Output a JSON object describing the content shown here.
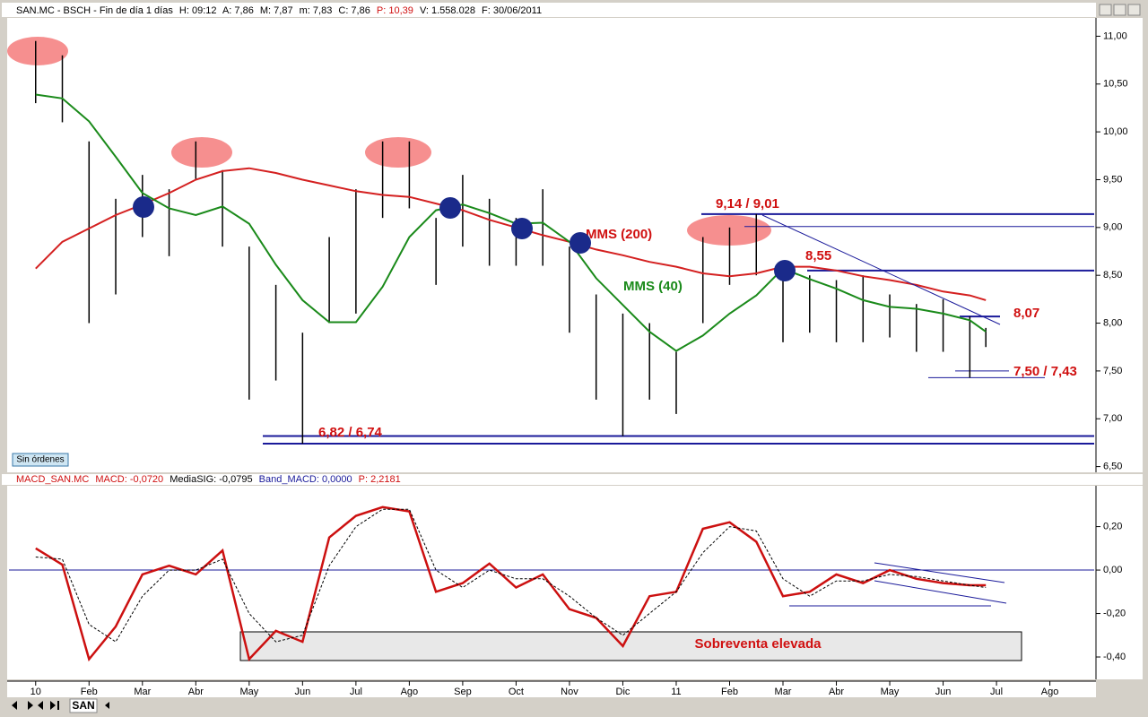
{
  "header": [
    "SAN.MC - BSCH - Fin de día 1 días",
    "H: 09:12",
    "A: 7,86",
    "M: 7,87",
    "m: 7,83",
    "C: 7,86",
    "P: 10,39",
    "V: 1.558.028",
    "F: 30/06/2011"
  ],
  "button": "Sin órdenes",
  "tab": "SAN",
  "chart_data": [
    {
      "type": "ohlc",
      "x": [
        0,
        0.5,
        1,
        1.5,
        2,
        2.5,
        3,
        3.5,
        4,
        4.5,
        5,
        5.5,
        6,
        6.5,
        7,
        7.5,
        8,
        8.5,
        9,
        9.5,
        10,
        10.5,
        11,
        11.5,
        12,
        12.5,
        13,
        13.5,
        14,
        14.5,
        15,
        15.5,
        16,
        16.5,
        17,
        17.5,
        17.8
      ],
      "high": [
        10.95,
        10.8,
        9.9,
        9.3,
        9.55,
        9.4,
        9.9,
        9.6,
        8.8,
        8.4,
        7.9,
        8.9,
        9.4,
        9.9,
        9.9,
        9.1,
        9.55,
        9.3,
        9.1,
        9.4,
        8.8,
        8.3,
        8.1,
        8.0,
        7.7,
        8.9,
        9.0,
        9.14,
        8.55,
        8.5,
        8.45,
        8.5,
        8.3,
        8.2,
        8.25,
        8.07,
        7.95
      ],
      "low": [
        10.3,
        10.1,
        8.0,
        8.3,
        8.9,
        8.7,
        9.5,
        8.8,
        7.2,
        7.4,
        6.74,
        8.0,
        8.1,
        9.1,
        9.2,
        8.4,
        8.8,
        8.6,
        8.6,
        8.6,
        7.9,
        7.2,
        6.82,
        7.2,
        7.05,
        8.0,
        8.4,
        8.5,
        7.8,
        7.9,
        7.8,
        7.8,
        7.85,
        7.7,
        7.7,
        7.43,
        7.75
      ],
      "bar_color": "#000000",
      "series": [
        {
          "name": "MMS (200)",
          "color": "#d42020",
          "values": [
            8.57,
            8.85,
            8.99,
            9.13,
            9.24,
            9.36,
            9.5,
            9.59,
            9.62,
            9.57,
            9.5,
            9.44,
            9.38,
            9.34,
            9.32,
            9.25,
            9.18,
            9.08,
            9.0,
            8.92,
            8.85,
            8.77,
            8.71,
            8.64,
            8.59,
            8.52,
            8.49,
            8.52,
            8.59,
            8.59,
            8.55,
            8.49,
            8.45,
            8.4,
            8.33,
            8.29,
            8.24
          ]
        },
        {
          "name": "MMS (40)",
          "color": "#1a8a1a",
          "values": [
            10.39,
            10.35,
            10.11,
            9.74,
            9.36,
            9.2,
            9.13,
            9.22,
            9.04,
            8.61,
            8.24,
            8.01,
            8.01,
            8.38,
            8.9,
            9.18,
            9.24,
            9.15,
            9.04,
            9.05,
            8.85,
            8.47,
            8.19,
            7.91,
            7.71,
            7.87,
            8.1,
            8.29,
            8.57,
            8.46,
            8.36,
            8.24,
            8.17,
            8.15,
            8.1,
            8.03,
            7.91
          ]
        }
      ],
      "xlim": [
        -0.5,
        19.83
      ],
      "xticks": [
        {
          "value": 0,
          "label": "10"
        },
        {
          "value": 1,
          "label": "Feb"
        },
        {
          "value": 2,
          "label": "Mar"
        },
        {
          "value": 3,
          "label": "Abr"
        },
        {
          "value": 4,
          "label": "May"
        },
        {
          "value": 5,
          "label": "Jun"
        },
        {
          "value": 6,
          "label": "Jul"
        },
        {
          "value": 7,
          "label": "Ago"
        },
        {
          "value": 8,
          "label": "Sep"
        },
        {
          "value": 9,
          "label": "Oct"
        },
        {
          "value": 10,
          "label": "Nov"
        },
        {
          "value": 11,
          "label": "Dic"
        },
        {
          "value": 12,
          "label": "11"
        },
        {
          "value": 13,
          "label": "Feb"
        },
        {
          "value": 14,
          "label": "Mar"
        },
        {
          "value": 15,
          "label": "Abr"
        },
        {
          "value": 16,
          "label": "May"
        },
        {
          "value": 17,
          "label": "Jun"
        },
        {
          "value": 18,
          "label": "Jul"
        },
        {
          "value": 19,
          "label": "Ago"
        }
      ],
      "ylim": [
        6.44,
        11.21
      ],
      "yticks": [
        {
          "value": 6.5,
          "label": "6,50"
        },
        {
          "value": 7,
          "label": "7,00"
        },
        {
          "value": 7.5,
          "label": "7,50"
        },
        {
          "value": 8,
          "label": "8,00"
        },
        {
          "value": 8.5,
          "label": "8,50"
        },
        {
          "value": 9,
          "label": "9,00"
        },
        {
          "value": 9.5,
          "label": "9,50"
        },
        {
          "value": 10,
          "label": "10,00"
        },
        {
          "value": 10.5,
          "label": "10,50"
        },
        {
          "value": 11,
          "label": "11,00"
        }
      ],
      "levels": [
        9.14,
        9.01,
        8.55,
        8.07,
        7.5,
        7.43,
        6.82,
        6.74
      ],
      "level_color": "#1a1a9a",
      "annotations": [
        "9,14 / 9,01",
        "8,55",
        "8,07",
        "7,50 / 7,43",
        "6,82 / 6,74"
      ]
    },
    {
      "type": "line",
      "title": [
        "MACD_SAN.MC",
        "MACD: -0,0720",
        "MediaSIG: -0,0795",
        "Band_MACD: 0,0000",
        "P: 2,2181"
      ],
      "series": [
        {
          "name": "MACD",
          "color": "#cc1010",
          "values": [
            0.1,
            0.025,
            -0.41,
            -0.26,
            -0.02,
            0.02,
            -0.02,
            0.09,
            -0.41,
            -0.28,
            -0.33,
            0.15,
            0.25,
            0.29,
            0.27,
            -0.1,
            -0.06,
            0.03,
            -0.08,
            -0.02,
            -0.18,
            -0.22,
            -0.35,
            -0.12,
            -0.1,
            0.19,
            0.22,
            0.13,
            -0.12,
            -0.1,
            -0.02,
            -0.06,
            0.0,
            -0.04,
            -0.06,
            -0.07,
            -0.07
          ]
        },
        {
          "name": "MediaSIG",
          "color": "#000000",
          "values": [
            0.06,
            0.05,
            -0.25,
            -0.33,
            -0.12,
            0.0,
            0.0,
            0.05,
            -0.2,
            -0.33,
            -0.3,
            0.02,
            0.2,
            0.28,
            0.28,
            0.0,
            -0.08,
            0.0,
            -0.04,
            -0.04,
            -0.12,
            -0.22,
            -0.3,
            -0.2,
            -0.1,
            0.08,
            0.2,
            0.18,
            -0.04,
            -0.12,
            -0.05,
            -0.05,
            -0.02,
            -0.03,
            -0.05,
            -0.07,
            -0.08
          ]
        }
      ],
      "band": 0,
      "ylim": [
        -0.503,
        0.388
      ],
      "yticks": [
        {
          "value": -0.4,
          "label": "-0,40"
        },
        {
          "value": -0.2,
          "label": "-0,20"
        },
        {
          "value": 0,
          "label": "0,00"
        },
        {
          "value": 0.2,
          "label": "0,20"
        }
      ],
      "annotation": "Sobreventa elevada"
    }
  ]
}
